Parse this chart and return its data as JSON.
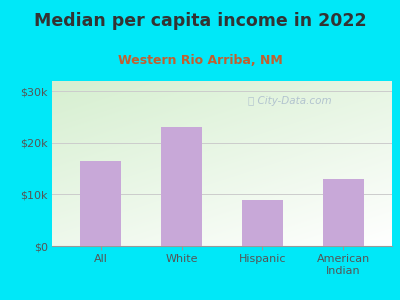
{
  "title": "Median per capita income in 2022",
  "subtitle": "Western Rio Arriba, NM",
  "categories": [
    "All",
    "White",
    "Hispanic",
    "American\nIndian"
  ],
  "values": [
    16500,
    23000,
    9000,
    13000
  ],
  "bar_color": "#c8a8d8",
  "background_outer": "#00e8f8",
  "background_inner_left": "#d8efd0",
  "background_inner_right": "#f0f8ff",
  "title_color": "#333333",
  "subtitle_color": "#c06030",
  "yticks": [
    0,
    10000,
    20000,
    30000
  ],
  "ytick_labels": [
    "$0",
    "$10k",
    "$20k",
    "$30k"
  ],
  "ylim": [
    0,
    32000
  ],
  "watermark": "City-Data.com",
  "watermark_color": "#aabbcc"
}
